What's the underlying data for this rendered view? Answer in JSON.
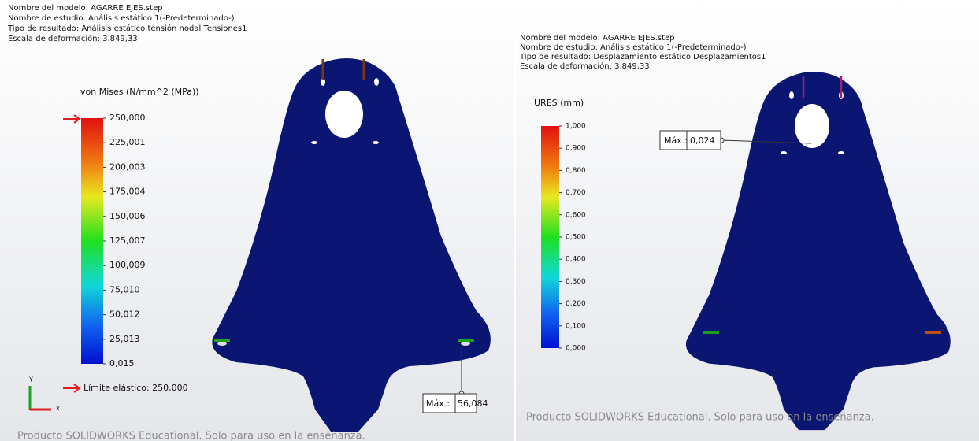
{
  "panels": [
    {
      "info": [
        "Nombre del modelo: AGARRE EJES.step",
        "Nombre de estudio: Análisis estático 1(-Predeterminado-)",
        "Tipo de resultado: Análisis estático tensión nodal Tensiones1",
        "Escala de deformación: 3.849,33"
      ],
      "legend_title": "von Mises (N/mm^2 (MPa))",
      "legend_labels": [
        "250,000",
        "225,001",
        "200,003",
        "175,004",
        "150,006",
        "125,007",
        "100,009",
        "75,010",
        "50,012",
        "25,013",
        "0,015"
      ],
      "yield": "Límite elástico: 250,000",
      "triad": [
        "Y",
        "x"
      ],
      "max_label": "Máx.:",
      "max_value": "56,084",
      "watermark": "Producto SOLIDWORKS Educational. Solo para uso en la enseñanza."
    },
    {
      "info": [
        "Nombre del modelo: AGARRE EJES.step",
        "Nombre de estudio: Análisis estático 1(-Predeterminado-)",
        "Tipo de resultado: Desplazamiento estático Desplazamientos1",
        "Escala de deformación: 3.849,33"
      ],
      "legend_title": "URES (mm)",
      "legend_labels": [
        "1,000",
        "0,900",
        "0,800",
        "0,700",
        "0,600",
        "0,500",
        "0,400",
        "0,300",
        "0,200",
        "0,100",
        "0,000"
      ],
      "max_label": "Máx.:",
      "max_value": "0,024",
      "watermark": "Producto SOLIDWORKS Educational. Solo para uso en la enseñanza."
    }
  ]
}
